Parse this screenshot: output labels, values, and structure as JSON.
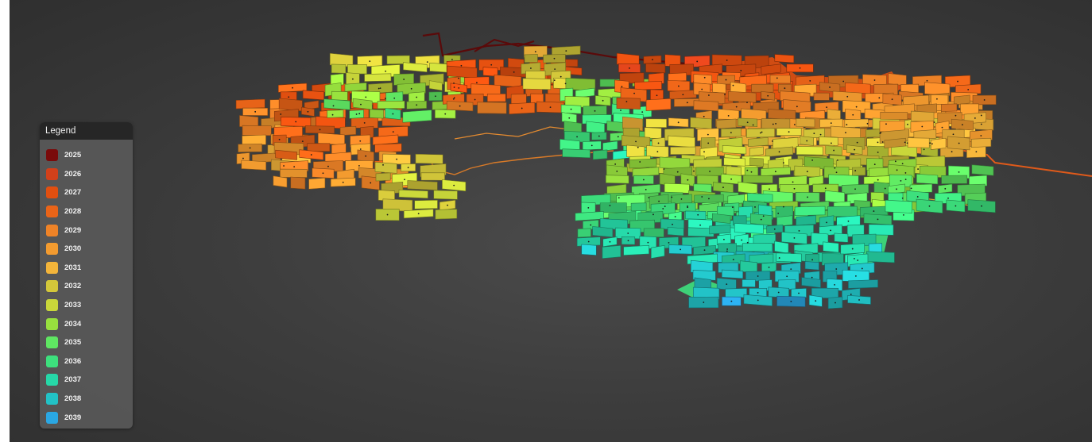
{
  "legend": {
    "title": "Legend",
    "items": [
      {
        "year": "2025",
        "color": "#7a0a0a"
      },
      {
        "year": "2026",
        "color": "#d2401a"
      },
      {
        "year": "2027",
        "color": "#e14f10"
      },
      {
        "year": "2028",
        "color": "#ea6418"
      },
      {
        "year": "2029",
        "color": "#ef8327"
      },
      {
        "year": "2030",
        "color": "#f39b2f"
      },
      {
        "year": "2031",
        "color": "#f3b43a"
      },
      {
        "year": "2032",
        "color": "#d3c73a"
      },
      {
        "year": "2033",
        "color": "#c9d73a"
      },
      {
        "year": "2034",
        "color": "#98e03e"
      },
      {
        "year": "2035",
        "color": "#5fe662"
      },
      {
        "year": "2036",
        "color": "#3de07d"
      },
      {
        "year": "2037",
        "color": "#26d8a8"
      },
      {
        "year": "2038",
        "color": "#22c2c6"
      },
      {
        "year": "2039",
        "color": "#2aa7e3"
      }
    ]
  }
}
